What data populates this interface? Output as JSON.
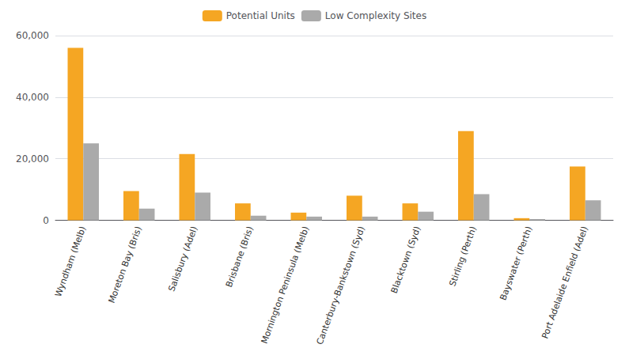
{
  "chart_data": {
    "type": "bar",
    "categories": [
      "Wyndham (Melb)",
      "Moreton Bay (Bris)",
      "Salisbury (Adel)",
      "Brisbane (Bris)",
      "Mornington Peninsula (Melb)",
      "Canterbury-Bankstown (Syd)",
      "Blacktown (Syd)",
      "Stirling (Perth)",
      "Bayswater (Perth)",
      "Port Adelaide Enfield (Adel)"
    ],
    "series": [
      {
        "name": "Potential Units",
        "color": "#F5A623",
        "values": [
          56000,
          9500,
          21500,
          5500,
          2500,
          8000,
          5500,
          29000,
          700,
          17500
        ]
      },
      {
        "name": "Low Complexity Sites",
        "color": "#AAAAAA",
        "values": [
          25000,
          3800,
          9000,
          1500,
          1200,
          1200,
          2800,
          8500,
          400,
          6500
        ]
      }
    ],
    "ylim": [
      0,
      60000
    ],
    "yticks": [
      0,
      {
        "value": 20000,
        "label": "20,000"
      },
      {
        "value": 40000,
        "label": "40,000"
      },
      {
        "value": 60000,
        "label": "60,000"
      }
    ],
    "grid": true,
    "legend": "top"
  }
}
